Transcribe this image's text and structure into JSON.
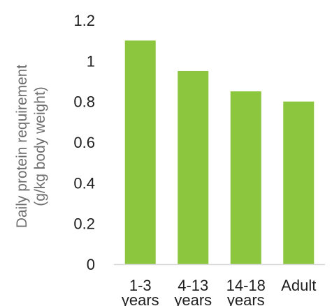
{
  "chart_data": {
    "type": "bar",
    "categories": [
      [
        "1-3",
        "years"
      ],
      [
        "4-13",
        "years"
      ],
      [
        "14-18",
        "years"
      ],
      [
        "Adult"
      ]
    ],
    "values": [
      1.1,
      0.95,
      0.85,
      0.8
    ],
    "ylabel_lines": [
      "Daily protein requirement",
      "(g/kg body weight)"
    ],
    "ylim": [
      0,
      1.2
    ],
    "yticks": [
      "0",
      "0.2",
      "0.4",
      "0.6",
      "0.8",
      "1",
      "1.2"
    ],
    "ytick_values": [
      0,
      0.2,
      0.4,
      0.6,
      0.8,
      1.0,
      1.2
    ],
    "grid": false,
    "legend": "none",
    "colors": {
      "bar": "#8cc63e",
      "axis": "#d9d9d9",
      "text": "#1f1f1f",
      "axis_title": "#6e6e6e"
    }
  }
}
